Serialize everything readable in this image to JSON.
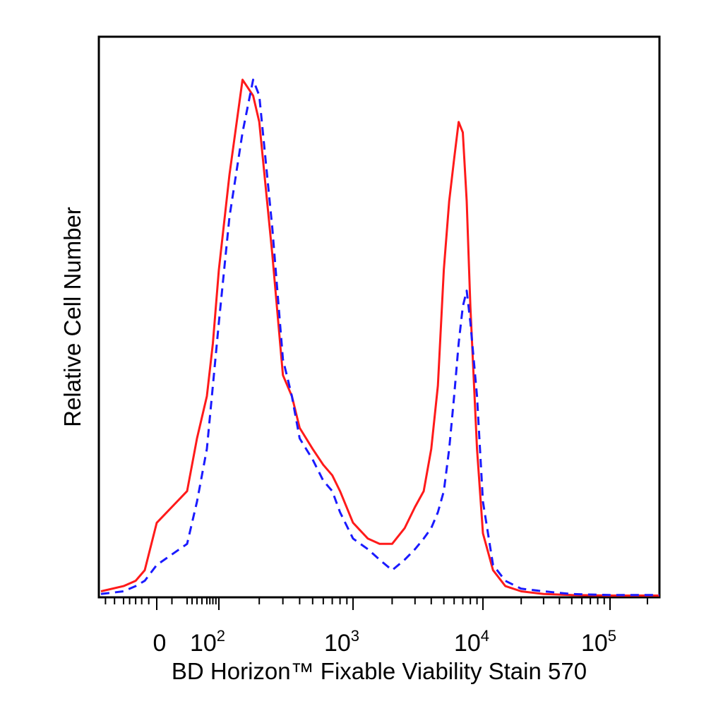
{
  "chart_data": {
    "type": "line",
    "title": "",
    "xlabel": "BD Horizon™ Fixable Viability Stain 570",
    "ylabel": "Relative Cell Number",
    "x_scale": "biexponential (linear near 0, log above ~10^2)",
    "x_range": [
      -150,
      250000
    ],
    "y_range": [
      0,
      100
    ],
    "grid": false,
    "legend": "none",
    "x_ticks": [
      {
        "value": 0,
        "base": "0",
        "exp": ""
      },
      {
        "value": 100,
        "base": "10",
        "exp": "2"
      },
      {
        "value": 1000,
        "base": "10",
        "exp": "3"
      },
      {
        "value": 10000,
        "base": "10",
        "exp": "4"
      },
      {
        "value": 100000,
        "base": "10",
        "exp": "5"
      }
    ],
    "series": [
      {
        "color": "#ff1a1a",
        "dash": "solid",
        "x": [
          -150,
          -100,
          -60,
          -30,
          0,
          20,
          40,
          60,
          80,
          100,
          120,
          150,
          180,
          200,
          250,
          300,
          350,
          400,
          500,
          600,
          700,
          800,
          1000,
          1300,
          1600,
          2000,
          2500,
          3000,
          3500,
          4000,
          4500,
          5000,
          5500,
          6000,
          6500,
          7000,
          7500,
          8000,
          9000,
          10000,
          12000,
          15000,
          20000,
          30000,
          50000,
          100000,
          250000
        ],
        "y": [
          1,
          2,
          3,
          5,
          14,
          20,
          30,
          38,
          48,
          62,
          80,
          98,
          95,
          90,
          65,
          42,
          38,
          32,
          28,
          25,
          23,
          20,
          14,
          11,
          10,
          10,
          13,
          17,
          20,
          28,
          40,
          62,
          75,
          83,
          90,
          88,
          75,
          55,
          28,
          12,
          5,
          2,
          1,
          0.5,
          0.3,
          0.2,
          0.2
        ]
      },
      {
        "color": "#1a1aff",
        "dash": "dashed",
        "x": [
          -150,
          -100,
          -60,
          -30,
          0,
          20,
          40,
          60,
          80,
          100,
          120,
          150,
          180,
          200,
          250,
          300,
          350,
          400,
          500,
          600,
          700,
          800,
          1000,
          1300,
          1600,
          2000,
          2500,
          3000,
          3500,
          4000,
          4500,
          5000,
          5500,
          6000,
          6500,
          7000,
          7500,
          8000,
          9000,
          10000,
          12000,
          15000,
          20000,
          30000,
          50000,
          100000,
          250000
        ],
        "y": [
          0.5,
          1,
          2,
          3,
          6,
          10,
          18,
          28,
          40,
          52,
          72,
          88,
          98,
          95,
          70,
          45,
          38,
          30,
          26,
          22,
          20,
          16,
          11,
          9,
          7,
          5,
          7,
          9,
          11,
          13,
          16,
          20,
          28,
          38,
          48,
          55,
          58,
          52,
          38,
          18,
          6,
          3,
          1.5,
          1,
          0.5,
          0.3,
          0.3
        ]
      }
    ]
  }
}
